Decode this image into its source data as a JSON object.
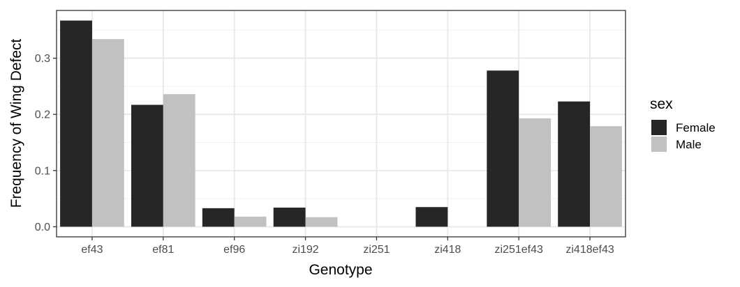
{
  "chart_data": {
    "type": "bar",
    "title": "",
    "xlabel": "Genotype",
    "ylabel": "Frequency of Wing Defect",
    "categories": [
      "ef43",
      "ef81",
      "ef96",
      "zi192",
      "zi251",
      "zi418",
      "zi251ef43",
      "zi418ef43"
    ],
    "series": [
      {
        "name": "Female",
        "color": "#262626",
        "values": [
          0.367,
          0.217,
          0.033,
          0.034,
          0.0,
          0.035,
          0.278,
          0.223
        ]
      },
      {
        "name": "Male",
        "color": "#c1c1c1",
        "values": [
          0.334,
          0.236,
          0.018,
          0.017,
          0.0,
          0.0,
          0.193,
          0.179
        ]
      }
    ],
    "ylim": [
      -0.018,
      0.385
    ],
    "yticks": [
      0.0,
      0.1,
      0.2,
      0.3
    ],
    "ytick_labels": [
      "0.0",
      "0.1",
      "0.2",
      "0.3"
    ],
    "grid": true,
    "legend": {
      "title": "sex",
      "position": "right"
    }
  }
}
